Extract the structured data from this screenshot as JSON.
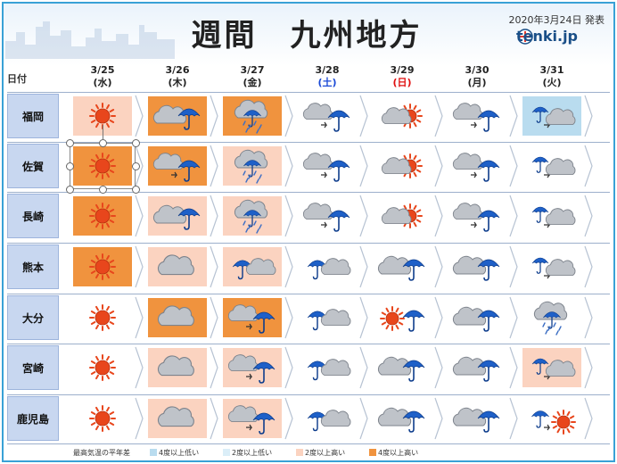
{
  "header": {
    "title": "週間　九州地方",
    "issued": "2020年3月24日 発表",
    "brand": "tenki.jp"
  },
  "colors": {
    "high4": "#f0933e",
    "high2": "#fbd3c0",
    "low4": "#b9dcef",
    "low2": "#dbeef8",
    "sun": "#e8461c",
    "umbrella": "#1e60c8",
    "label_bg": "#c8d7f0"
  },
  "table": {
    "date_label": "日付",
    "days": [
      {
        "date": "3/25",
        "dow": "(水)",
        "type": "weekday"
      },
      {
        "date": "3/26",
        "dow": "(木)",
        "type": "weekday"
      },
      {
        "date": "3/27",
        "dow": "(金)",
        "type": "weekday"
      },
      {
        "date": "3/28",
        "dow": "(土)",
        "type": "sat"
      },
      {
        "date": "3/29",
        "dow": "(日)",
        "type": "sun"
      },
      {
        "date": "3/30",
        "dow": "(月)",
        "type": "weekday"
      },
      {
        "date": "3/31",
        "dow": "(火)",
        "type": "weekday"
      }
    ],
    "rows": [
      {
        "city": "福岡",
        "cells": [
          {
            "weather": "sunny",
            "anomaly": "high2"
          },
          {
            "weather": "cloudy-rain",
            "anomaly": "high4"
          },
          {
            "weather": "rain",
            "anomaly": "high4"
          },
          {
            "weather": "cloudy-then-rain",
            "anomaly": "none"
          },
          {
            "weather": "cloudy-sun",
            "anomaly": "none"
          },
          {
            "weather": "cloudy-then-rain",
            "anomaly": "none"
          },
          {
            "weather": "rain-then-cloudy",
            "anomaly": "low4"
          }
        ]
      },
      {
        "city": "佐賀",
        "cells": [
          {
            "weather": "sunny",
            "anomaly": "high4"
          },
          {
            "weather": "cloudy-then-rain",
            "anomaly": "high4"
          },
          {
            "weather": "rain",
            "anomaly": "high2"
          },
          {
            "weather": "cloudy-then-rain",
            "anomaly": "none"
          },
          {
            "weather": "cloudy-sun",
            "anomaly": "none"
          },
          {
            "weather": "cloudy-then-rain",
            "anomaly": "none"
          },
          {
            "weather": "rain-then-cloudy",
            "anomaly": "none"
          }
        ]
      },
      {
        "city": "長崎",
        "cells": [
          {
            "weather": "sunny",
            "anomaly": "high4"
          },
          {
            "weather": "cloudy-rain",
            "anomaly": "high2"
          },
          {
            "weather": "rain",
            "anomaly": "high2"
          },
          {
            "weather": "cloudy-then-rain",
            "anomaly": "none"
          },
          {
            "weather": "cloudy-sun",
            "anomaly": "none"
          },
          {
            "weather": "cloudy-then-rain",
            "anomaly": "none"
          },
          {
            "weather": "rain-then-cloudy",
            "anomaly": "none"
          }
        ]
      },
      {
        "city": "熊本",
        "cells": [
          {
            "weather": "sunny",
            "anomaly": "high4"
          },
          {
            "weather": "cloudy",
            "anomaly": "high2"
          },
          {
            "weather": "rain-cloudy",
            "anomaly": "high2"
          },
          {
            "weather": "rain-cloudy",
            "anomaly": "none"
          },
          {
            "weather": "cloudy-rain",
            "anomaly": "none"
          },
          {
            "weather": "cloudy-rain",
            "anomaly": "none"
          },
          {
            "weather": "rain-then-cloudy",
            "anomaly": "none"
          }
        ]
      },
      {
        "city": "大分",
        "cells": [
          {
            "weather": "sunny",
            "anomaly": "none"
          },
          {
            "weather": "cloudy",
            "anomaly": "high4"
          },
          {
            "weather": "cloudy-then-rain",
            "anomaly": "high4"
          },
          {
            "weather": "rain-cloudy",
            "anomaly": "none"
          },
          {
            "weather": "sun-rain",
            "anomaly": "none"
          },
          {
            "weather": "cloudy-rain",
            "anomaly": "none"
          },
          {
            "weather": "rain",
            "anomaly": "none"
          }
        ]
      },
      {
        "city": "宮崎",
        "cells": [
          {
            "weather": "sunny",
            "anomaly": "none"
          },
          {
            "weather": "cloudy",
            "anomaly": "high2"
          },
          {
            "weather": "cloudy-then-rain",
            "anomaly": "high2"
          },
          {
            "weather": "rain-cloudy",
            "anomaly": "none"
          },
          {
            "weather": "cloudy-rain",
            "anomaly": "none"
          },
          {
            "weather": "cloudy-rain",
            "anomaly": "none"
          },
          {
            "weather": "rain-then-cloudy",
            "anomaly": "high2"
          }
        ]
      },
      {
        "city": "鹿児島",
        "cells": [
          {
            "weather": "sunny",
            "anomaly": "none"
          },
          {
            "weather": "cloudy",
            "anomaly": "high2"
          },
          {
            "weather": "cloudy-then-rain",
            "anomaly": "high2"
          },
          {
            "weather": "rain-cloudy",
            "anomaly": "none"
          },
          {
            "weather": "cloudy-rain",
            "anomaly": "none"
          },
          {
            "weather": "cloudy-rain",
            "anomaly": "none"
          },
          {
            "weather": "rain-sun",
            "anomaly": "none"
          }
        ]
      }
    ]
  },
  "legend": {
    "title": "最高気温の平年差",
    "items": [
      {
        "label": "4度以上低い",
        "key": "low4"
      },
      {
        "label": "2度以上低い",
        "key": "low2"
      },
      {
        "label": "2度以上高い",
        "key": "high2"
      },
      {
        "label": "4度以上高い",
        "key": "high4"
      }
    ]
  },
  "selection": {
    "row": 1,
    "col": 0
  }
}
